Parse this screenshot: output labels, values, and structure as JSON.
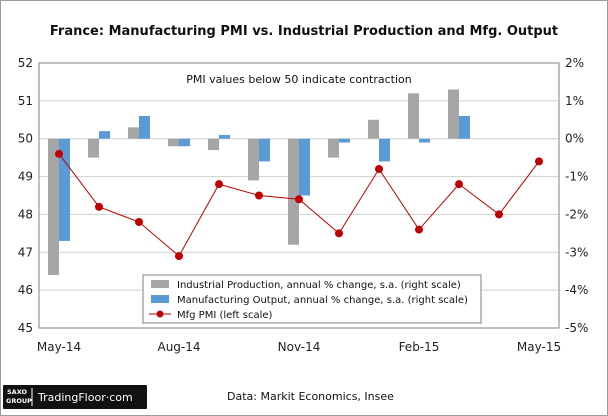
{
  "chart_data": {
    "type": "bar",
    "title": "France: Manufacturing PMI vs. Industrial Production and Mfg. Output",
    "annotation": "PMI values below 50 indicate contraction",
    "x_tick_labels": [
      "May-14",
      "Aug-14",
      "Nov-14",
      "Feb-15",
      "May-15"
    ],
    "left_axis": {
      "ylim": [
        45,
        52
      ],
      "ticks": [
        "45",
        "46",
        "47",
        "48",
        "49",
        "50",
        "51",
        "52"
      ]
    },
    "right_axis": {
      "ylim": [
        -5,
        2
      ],
      "ticks": [
        "-5%",
        "-4%",
        "-3%",
        "-2%",
        "-1%",
        "0%",
        "1%",
        "2%"
      ]
    },
    "series": [
      {
        "name": "Industrial Production, annual % change, s.a. (right scale)",
        "type": "bar",
        "axis": "right",
        "color": "#a6a6a6",
        "values": [
          -3.6,
          -0.5,
          0.3,
          -0.2,
          -0.3,
          -1.1,
          -2.8,
          -0.5,
          0.5,
          1.2,
          1.3,
          null,
          null
        ]
      },
      {
        "name": "Manufacturing Output, annual % change, s.a. (right scale)",
        "type": "bar",
        "axis": "right",
        "color": "#5b9bd5",
        "values": [
          -2.7,
          0.2,
          0.6,
          -0.2,
          0.1,
          -0.6,
          -1.5,
          -0.1,
          -0.6,
          -0.1,
          0.6,
          null,
          null
        ]
      },
      {
        "name": "Mfg PMI (left scale)",
        "type": "line",
        "axis": "left",
        "color": "#c00000",
        "values": [
          49.6,
          48.2,
          47.8,
          46.9,
          48.8,
          48.5,
          48.4,
          47.5,
          49.2,
          47.6,
          48.8,
          48.0,
          49.4
        ]
      }
    ],
    "grid": true,
    "legend_position": "bottom-center"
  },
  "branding": {
    "logo_small_top": "SAXO",
    "logo_small_bottom": "GROUP",
    "logo_name": "TradingFloor·com"
  },
  "source": "Data: Markit Economics,  Insee",
  "colors": {
    "plot_border": "#808080",
    "grid": "#d0d0d0",
    "logo_bg": "#111111"
  }
}
